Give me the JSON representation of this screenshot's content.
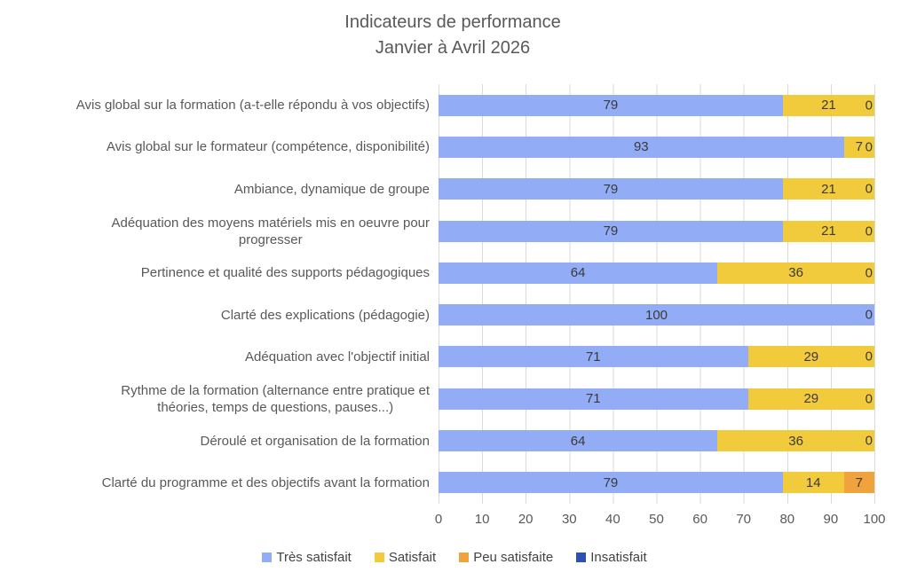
{
  "title": {
    "line1": "Indicateurs de performance",
    "line2": "Janvier à Avril 2026"
  },
  "chart_data": {
    "type": "bar",
    "orientation": "horizontal",
    "stacked": true,
    "title": "Indicateurs de performance Janvier à Avril 2026",
    "xlabel": "",
    "ylabel": "",
    "xlim": [
      0,
      100
    ],
    "x_ticks": [
      0,
      10,
      20,
      30,
      40,
      50,
      60,
      70,
      80,
      90,
      100
    ],
    "grid": "vertical",
    "gridline_color": "#d9d9d9",
    "legend_position": "bottom",
    "categories": [
      "Avis global sur la formation (a-t-elle répondu à vos objectifs)",
      "Avis global sur le formateur (compétence, disponibilité)",
      "Ambiance, dynamique de groupe",
      "Adéquation des moyens matériels mis en oeuvre pour\nprogresser",
      "Pertinence et qualité des supports pédagogiques",
      "Clarté des explications (pédagogie)",
      "Adéquation avec l'objectif initial",
      "Rythme de la formation (alternance entre pratique et\nthéories, temps de questions, pauses...)",
      "Déroulé et organisation de la formation",
      "Clarté du programme et des objectifs avant la formation"
    ],
    "series": [
      {
        "name": "Très satisfait",
        "color": "#92acf5",
        "values": [
          79,
          93,
          79,
          79,
          64,
          100,
          71,
          71,
          64,
          79
        ]
      },
      {
        "name": "Satisfait",
        "color": "#f2cb3d",
        "values": [
          21,
          7,
          21,
          21,
          36,
          0,
          29,
          29,
          36,
          14
        ]
      },
      {
        "name": "Peu satisfaite",
        "color": "#f0a33c",
        "values": [
          0,
          0,
          0,
          0,
          0,
          0,
          0,
          0,
          0,
          7
        ]
      },
      {
        "name": "Insatisfait",
        "color": "#2b50b8",
        "values": [
          0,
          0,
          0,
          0,
          0,
          0,
          0,
          0,
          0,
          0
        ]
      }
    ],
    "end_labels": [
      "0",
      "0",
      "0",
      "0",
      "0",
      "0",
      "0",
      "0",
      "0",
      ""
    ]
  }
}
